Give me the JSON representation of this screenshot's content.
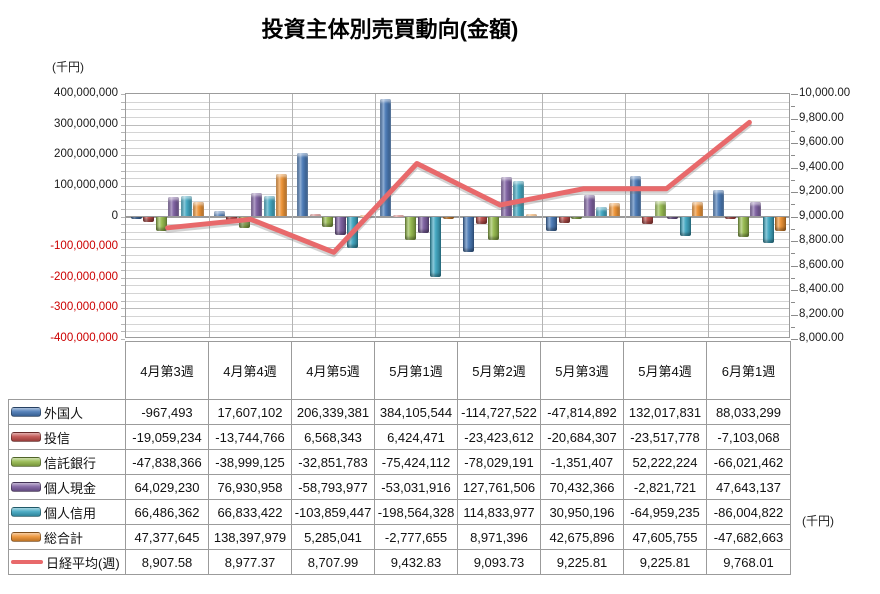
{
  "title": "投資主体別売買動向(金額)",
  "axis_units": {
    "left": "(千円)",
    "right": "(千円)"
  },
  "chart_data": {
    "type": "bar",
    "subtype": "clustered-column-with-line",
    "title": "投資主体別売買動向(金額)",
    "categories": [
      "4月第3週",
      "4月第4週",
      "4月第5週",
      "5月第1週",
      "5月第2週",
      "5月第3週",
      "5月第4週",
      "6月第1週"
    ],
    "left_axis": {
      "label": "(千円)",
      "min": -400000000,
      "max": 400000000,
      "major_step": 100000000,
      "minor_step": 25000000
    },
    "right_axis": {
      "label": "(千円)",
      "min": 8000,
      "max": 10000,
      "major_step": 200
    },
    "grid": "on",
    "legend_position": "table-left-column",
    "series": [
      {
        "key": "foreigners",
        "name": "外国人",
        "chart": "bar",
        "axis": "left",
        "color": "#4576B4",
        "values": [
          -967493,
          17607102,
          206339381,
          384105544,
          -114727522,
          -47814892,
          132017831,
          88033299
        ]
      },
      {
        "key": "investment-trusts",
        "name": "投信",
        "chart": "bar",
        "axis": "left",
        "color": "#BE4B48",
        "values": [
          -19059234,
          -13744766,
          6568343,
          6424471,
          -23423612,
          -20684307,
          -23517778,
          -7103068
        ]
      },
      {
        "key": "trust-banks",
        "name": "信託銀行",
        "chart": "bar",
        "axis": "left",
        "color": "#93B84A",
        "values": [
          -47838366,
          -38999125,
          -32851783,
          -75424112,
          -78029191,
          -1351407,
          52222224,
          -66021462
        ]
      },
      {
        "key": "individual-cash",
        "name": "個人現金",
        "chart": "bar",
        "axis": "left",
        "color": "#7A5C9E",
        "values": [
          64029230,
          76930958,
          -58793977,
          -53031916,
          127761506,
          70432366,
          -2821721,
          47643137
        ]
      },
      {
        "key": "individual-margin",
        "name": "個人信用",
        "chart": "bar",
        "axis": "left",
        "color": "#3BA4BF",
        "values": [
          66486362,
          66833422,
          -103859447,
          -198564328,
          114833977,
          30950196,
          -64959235,
          -86004822
        ]
      },
      {
        "key": "total",
        "name": "総合計",
        "chart": "bar",
        "axis": "left",
        "color": "#EC8F2E",
        "values": [
          47377645,
          138397979,
          5285041,
          -2777655,
          8971396,
          42675896,
          47605755,
          -47682663
        ]
      },
      {
        "key": "nikkei-weekly",
        "name": "日経平均(週)",
        "chart": "line",
        "axis": "right",
        "color": "#E8696B",
        "values": [
          8907.58,
          8977.37,
          8707.99,
          9432.83,
          9093.73,
          9225.81,
          9225.81,
          9768.01
        ]
      }
    ]
  }
}
